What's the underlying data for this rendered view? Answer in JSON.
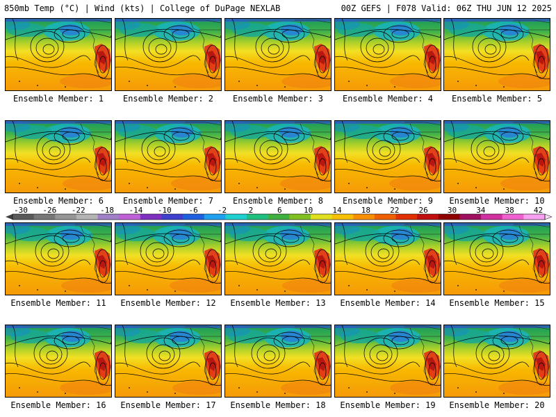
{
  "header": {
    "left": "850mb Temp (°C) | Wind (kts) | College of DuPage NEXLAB",
    "right": "00Z GEFS | F078 Valid: 06Z THU JUN 12 2025"
  },
  "members": [
    "Ensemble Member: 1",
    "Ensemble Member: 2",
    "Ensemble Member: 3",
    "Ensemble Member: 4",
    "Ensemble Member: 5",
    "Ensemble Member: 6",
    "Ensemble Member: 7",
    "Ensemble Member: 8",
    "Ensemble Member: 9",
    "Ensemble Member: 10",
    "Ensemble Member: 11",
    "Ensemble Member: 12",
    "Ensemble Member: 13",
    "Ensemble Member: 14",
    "Ensemble Member: 15",
    "Ensemble Member: 16",
    "Ensemble Member: 17",
    "Ensemble Member: 18",
    "Ensemble Member: 19",
    "Ensemble Member: 20"
  ],
  "colorbar": {
    "labels": [
      "-30",
      "-26",
      "-22",
      "-18",
      "-14",
      "-10",
      "-6",
      "-2",
      "2",
      "6",
      "10",
      "14",
      "18",
      "22",
      "26",
      "30",
      "34",
      "38",
      "42"
    ],
    "colors": [
      "#5a5a5a",
      "#787878",
      "#969696",
      "#b4b4b4",
      "#a080c8",
      "#c060d8",
      "#8030c0",
      "#4040d0",
      "#2060e0",
      "#20a0f0",
      "#20d0d0",
      "#20c080",
      "#40b040",
      "#80c020",
      "#e0e020",
      "#f8c000",
      "#f89000",
      "#f06000",
      "#e03000",
      "#c01010",
      "#900000",
      "#a01060",
      "#d030a0",
      "#f060d0",
      "#f8a0f0"
    ]
  }
}
